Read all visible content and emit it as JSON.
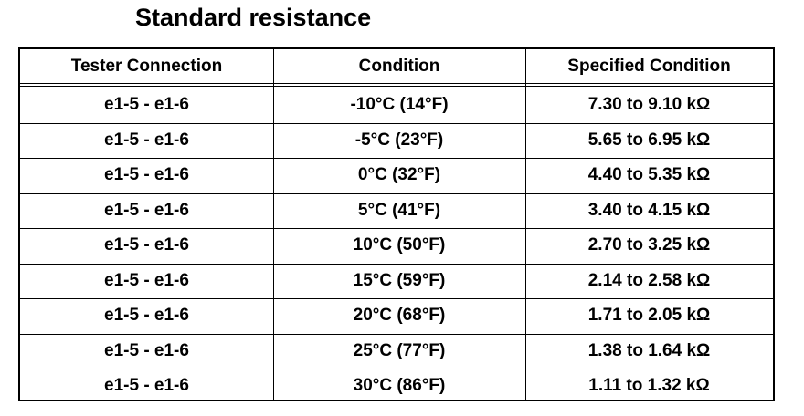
{
  "title": "Standard resistance",
  "table": {
    "header": [
      "Tester Connection",
      "Condition",
      "Specified Condition"
    ],
    "rows": [
      [
        "e1-5 - e1-6",
        "-10°C (14°F)",
        "7.30 to 9.10 kΩ"
      ],
      [
        "e1-5 - e1-6",
        "-5°C (23°F)",
        "5.65 to 6.95 kΩ"
      ],
      [
        "e1-5 - e1-6",
        "0°C (32°F)",
        "4.40 to 5.35 kΩ"
      ],
      [
        "e1-5 - e1-6",
        "5°C (41°F)",
        "3.40 to 4.15 kΩ"
      ],
      [
        "e1-5 - e1-6",
        "10°C (50°F)",
        "2.70 to 3.25 kΩ"
      ],
      [
        "e1-5 - e1-6",
        "15°C (59°F)",
        "2.14 to 2.58 kΩ"
      ],
      [
        "e1-5 - e1-6",
        "20°C (68°F)",
        "1.71 to 2.05 kΩ"
      ],
      [
        "e1-5 - e1-6",
        "25°C (77°F)",
        "1.38 to 1.64 kΩ"
      ],
      [
        "e1-5 - e1-6",
        "30°C (86°F)",
        "1.11 to 1.32 kΩ"
      ]
    ]
  }
}
